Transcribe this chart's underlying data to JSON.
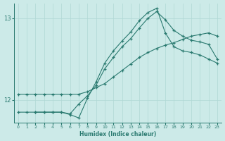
{
  "xlabel": "Humidex (Indice chaleur)",
  "bg_color": "#cceae8",
  "line_color": "#2a7a70",
  "grid_color": "#b0d8d5",
  "xlim": [
    -0.5,
    23.5
  ],
  "ylim": [
    11.72,
    13.18
  ],
  "yticks": [
    12,
    13
  ],
  "xticks": [
    0,
    1,
    2,
    3,
    4,
    5,
    6,
    7,
    8,
    9,
    10,
    11,
    12,
    13,
    14,
    15,
    16,
    17,
    18,
    19,
    20,
    21,
    22,
    23
  ],
  "series": [
    {
      "x": [
        0,
        1,
        2,
        3,
        4,
        5,
        6,
        7,
        8,
        9,
        10,
        11,
        12,
        13,
        14,
        15,
        16,
        17,
        18,
        19,
        20,
        21,
        22,
        23
      ],
      "y": [
        12.07,
        12.07,
        12.07,
        12.07,
        12.07,
        12.07,
        12.07,
        12.07,
        12.1,
        12.15,
        12.2,
        12.28,
        12.36,
        12.44,
        12.52,
        12.58,
        12.63,
        12.67,
        12.7,
        12.74,
        12.78,
        12.8,
        12.82,
        12.78
      ]
    },
    {
      "x": [
        0,
        1,
        2,
        3,
        4,
        5,
        6,
        7,
        8,
        9,
        10,
        11,
        12,
        13,
        14,
        15,
        16,
        17,
        18,
        19,
        20,
        21,
        22,
        23
      ],
      "y": [
        11.85,
        11.85,
        11.85,
        11.85,
        11.85,
        11.85,
        11.83,
        11.95,
        12.05,
        12.18,
        12.38,
        12.52,
        12.65,
        12.75,
        12.88,
        13.0,
        13.08,
        12.98,
        12.85,
        12.78,
        12.73,
        12.71,
        12.68,
        12.5
      ]
    },
    {
      "x": [
        2,
        3,
        4,
        5,
        6,
        7,
        8,
        9,
        10,
        11,
        12,
        13,
        14,
        15,
        16,
        17,
        18,
        19,
        20,
        21,
        22,
        23
      ],
      "y": [
        11.85,
        11.85,
        11.85,
        11.85,
        11.82,
        11.78,
        12.02,
        12.22,
        12.45,
        12.6,
        12.72,
        12.83,
        12.97,
        13.07,
        13.12,
        12.82,
        12.65,
        12.6,
        12.58,
        12.55,
        12.5,
        12.45
      ]
    }
  ]
}
